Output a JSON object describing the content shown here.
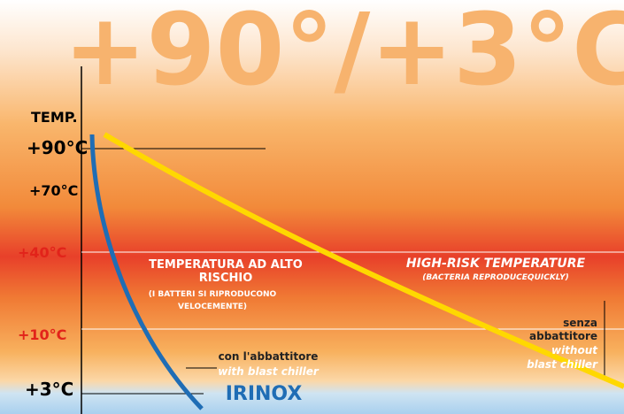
{
  "title": "+90°/+3°C",
  "axis_label": "TEMP.",
  "temperatures": [
    "+90°C",
    "+70°C",
    "+40°C",
    "+10°C",
    "+3°C"
  ],
  "zone_it": {
    "lines": [
      "TEMPERATURA AD ALTO",
      "RISCHIO"
    ],
    "note": [
      "(I BATTERI SI RIPRODUCONO",
      "VELOCEMENTE)"
    ]
  },
  "zone_en": {
    "title": "HIGH-RISK TEMPERATURE",
    "note": "(BACTERIA REPRODUCEQUICKLY)"
  },
  "without": {
    "it": [
      "senza",
      "abbattitore"
    ],
    "en": [
      "without",
      "blast chiller"
    ]
  },
  "with": {
    "it": "con l'abbattitore",
    "en": "with blast chiller"
  },
  "logo": "IRINOX"
}
